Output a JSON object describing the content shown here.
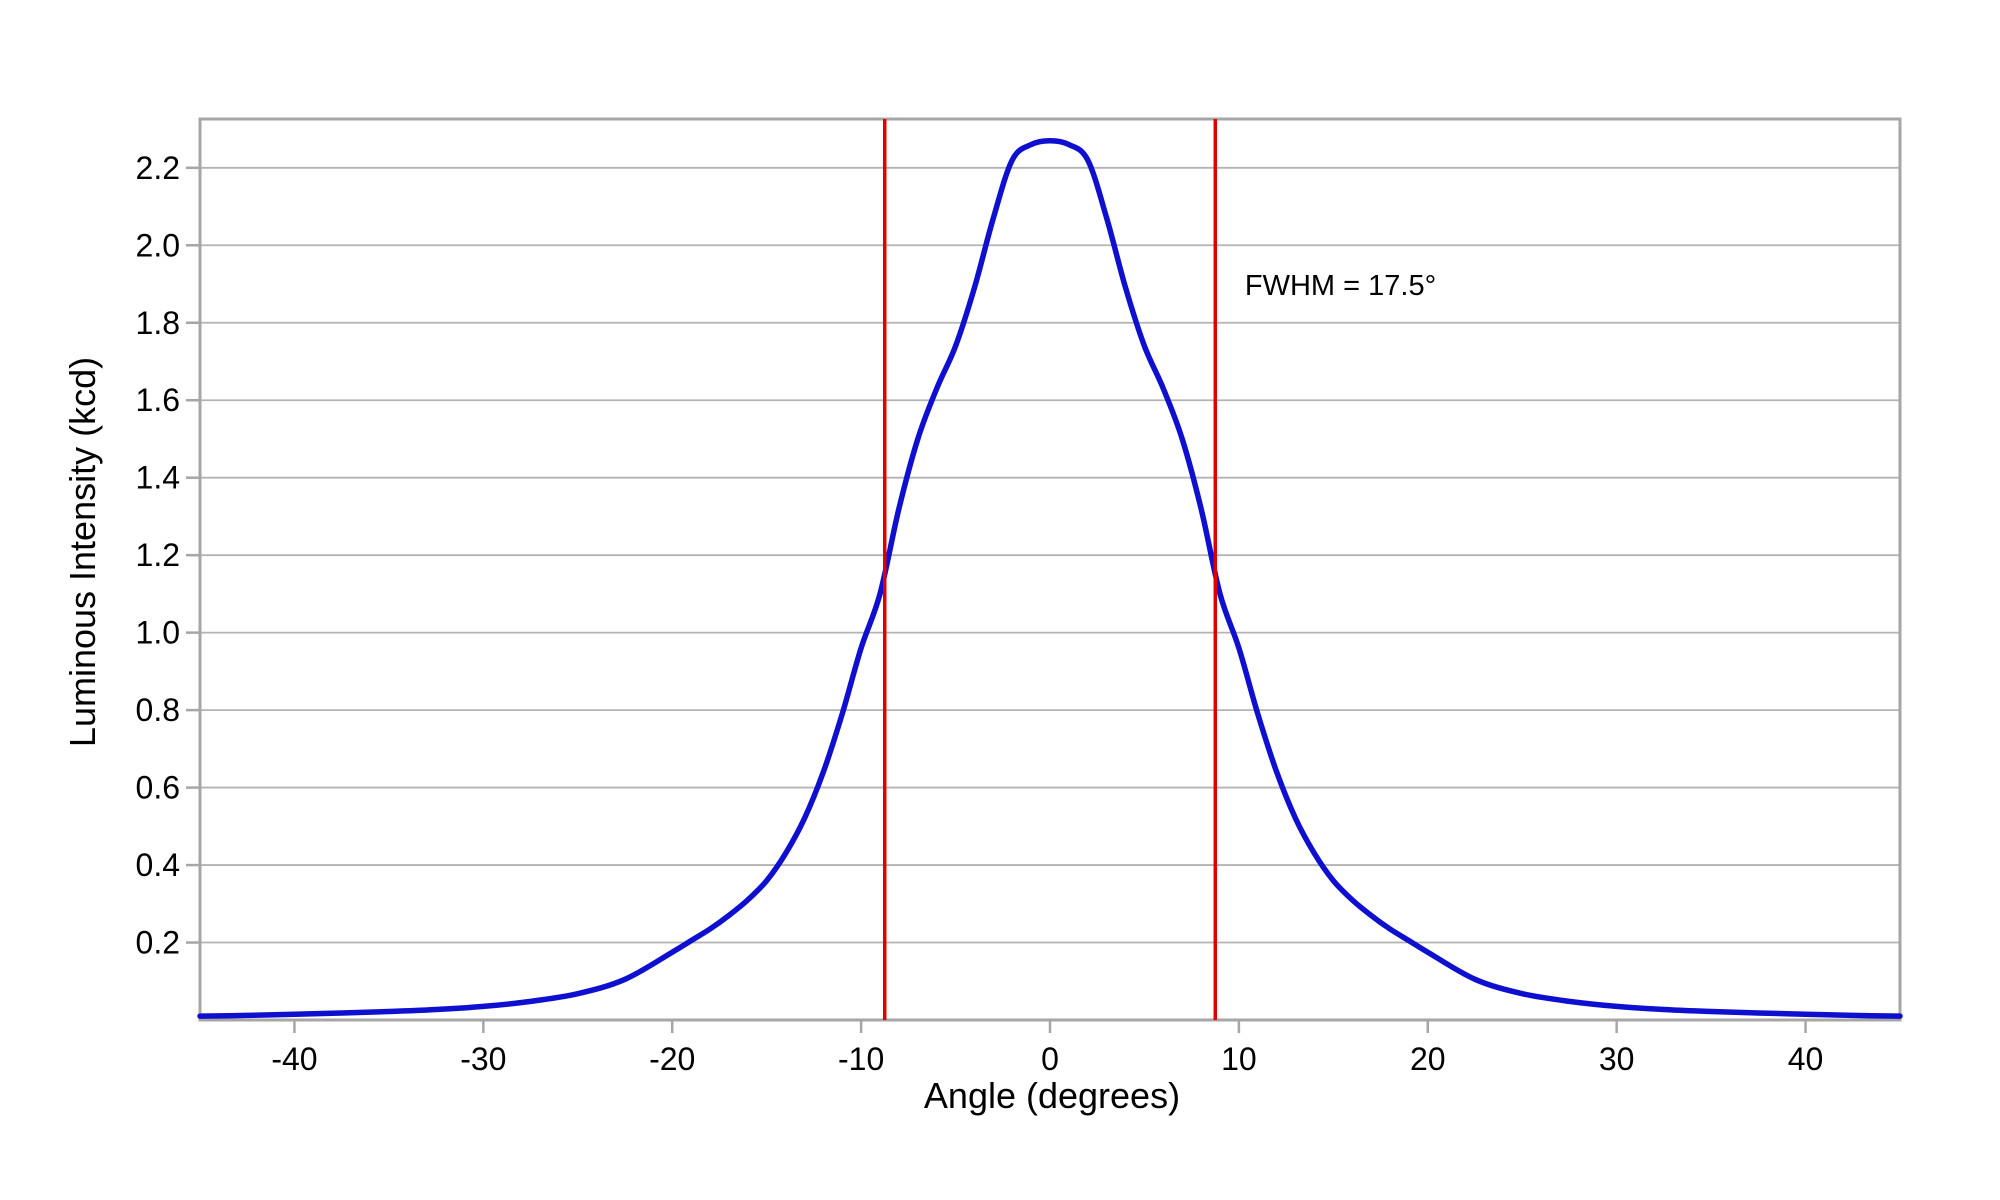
{
  "chart_data": {
    "type": "line",
    "title": "",
    "xlabel": "Angle (degrees)",
    "ylabel": "Luminous Intensity (kcd)",
    "xlim": [
      -45,
      45
    ],
    "ylim": [
      0,
      2.326
    ],
    "x_ticks": [
      -40,
      -30,
      -20,
      -10,
      0,
      10,
      20,
      30,
      40
    ],
    "y_ticks": [
      0.2,
      0.4,
      0.6,
      0.8,
      1.0,
      1.2,
      1.4,
      1.6,
      1.8,
      2.0,
      2.2
    ],
    "grid": "horizontal-only",
    "legend": "none",
    "series": [
      {
        "name": "luminous-intensity-profile",
        "color": "#0f0fd0",
        "points": [
          [
            -45,
            0.01
          ],
          [
            -42.5,
            0.012
          ],
          [
            -40,
            0.015
          ],
          [
            -37.5,
            0.018
          ],
          [
            -35,
            0.022
          ],
          [
            -32.5,
            0.027
          ],
          [
            -30,
            0.035
          ],
          [
            -27.5,
            0.048
          ],
          [
            -25,
            0.068
          ],
          [
            -22.5,
            0.105
          ],
          [
            -20,
            0.175
          ],
          [
            -19,
            0.205
          ],
          [
            -18,
            0.235
          ],
          [
            -17,
            0.27
          ],
          [
            -16,
            0.31
          ],
          [
            -15,
            0.36
          ],
          [
            -14,
            0.43
          ],
          [
            -13,
            0.52
          ],
          [
            -12,
            0.64
          ],
          [
            -11,
            0.79
          ],
          [
            -10,
            0.96
          ],
          [
            -9,
            1.1
          ],
          [
            -8,
            1.32
          ],
          [
            -7,
            1.5
          ],
          [
            -6,
            1.63
          ],
          [
            -5,
            1.74
          ],
          [
            -4,
            1.89
          ],
          [
            -3,
            2.07
          ],
          [
            -2,
            2.22
          ],
          [
            -1,
            2.26
          ],
          [
            0,
            2.27
          ],
          [
            1,
            2.26
          ],
          [
            2,
            2.22
          ],
          [
            3,
            2.07
          ],
          [
            4,
            1.89
          ],
          [
            5,
            1.74
          ],
          [
            6,
            1.63
          ],
          [
            7,
            1.5
          ],
          [
            8,
            1.32
          ],
          [
            9,
            1.1
          ],
          [
            10,
            0.96
          ],
          [
            11,
            0.79
          ],
          [
            12,
            0.64
          ],
          [
            13,
            0.52
          ],
          [
            14,
            0.43
          ],
          [
            15,
            0.36
          ],
          [
            16,
            0.31
          ],
          [
            17,
            0.27
          ],
          [
            18,
            0.235
          ],
          [
            19,
            0.205
          ],
          [
            20,
            0.175
          ],
          [
            22.5,
            0.105
          ],
          [
            25,
            0.068
          ],
          [
            27.5,
            0.048
          ],
          [
            30,
            0.035
          ],
          [
            32.5,
            0.027
          ],
          [
            35,
            0.022
          ],
          [
            37.5,
            0.018
          ],
          [
            40,
            0.015
          ],
          [
            42.5,
            0.012
          ],
          [
            45,
            0.01
          ]
        ]
      }
    ],
    "peak": {
      "angle_deg": 0,
      "intensity_kcd": 2.27
    },
    "half_max_kcd": 1.135,
    "fwhm_degrees": 17.5,
    "reference_lines": [
      {
        "axis": "x",
        "angle_deg": -8.75,
        "color": "#e10000"
      },
      {
        "axis": "x",
        "angle_deg": 8.75,
        "color": "#e10000"
      }
    ],
    "annotation": {
      "text": "FWHM = 17.5°",
      "anchor_angle_deg": 10.32,
      "anchor_intensity_kcd": 1.871
    },
    "colors": {
      "curve": "#0f0fd0",
      "reference_line": "#e10000",
      "gridline": "#b3b3b3",
      "frame": "#a6a6a6",
      "tick": "#a6a6a6",
      "text": "#000000",
      "background": "#ffffff"
    }
  }
}
